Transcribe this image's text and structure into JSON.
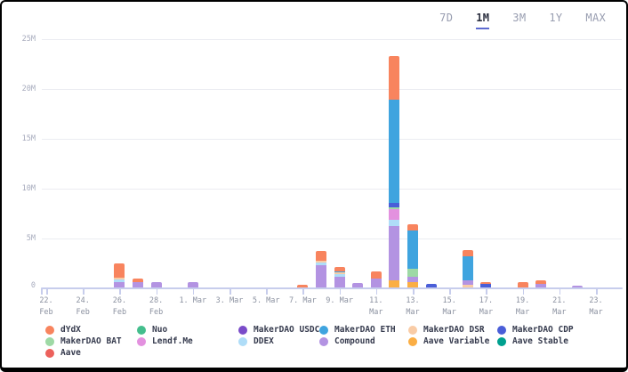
{
  "range_selector": {
    "options": [
      "7D",
      "1M",
      "3M",
      "1Y",
      "MAX"
    ],
    "active": "1M",
    "accent_color": "#5d6ad0"
  },
  "chart_data": {
    "type": "bar",
    "stacked": true,
    "title": "",
    "xlabel": "",
    "ylabel": "",
    "unit": "M (millions USD)",
    "ylim": [
      0,
      25
    ],
    "grid": true,
    "legend_position": "bottom",
    "yticks": [
      {
        "v": 0,
        "label": "0"
      },
      {
        "v": 5,
        "label": "5M"
      },
      {
        "v": 10,
        "label": "10M"
      },
      {
        "v": 15,
        "label": "15M"
      },
      {
        "v": 20,
        "label": "20M"
      },
      {
        "v": 25,
        "label": "25M"
      }
    ],
    "xticks": [
      [
        "22.",
        "Feb"
      ],
      [
        "24.",
        "Feb"
      ],
      [
        "26.",
        "Feb"
      ],
      [
        "28.",
        "Feb"
      ],
      [
        "1. Mar"
      ],
      [
        "3. Mar"
      ],
      [
        "5. Mar"
      ],
      [
        "7. Mar"
      ],
      [
        "9. Mar"
      ],
      [
        "11.",
        "Mar"
      ],
      [
        "13.",
        "Mar"
      ],
      [
        "15.",
        "Mar"
      ],
      [
        "17.",
        "Mar"
      ],
      [
        "19.",
        "Mar"
      ],
      [
        "21.",
        "Mar"
      ],
      [
        "23.",
        "Mar"
      ]
    ],
    "x_day_span": 31,
    "x_start_label": "22. Feb",
    "series_colors": {
      "dYdX": "#F8845E",
      "MakerDAO BAT": "#9ED9A5",
      "Aave": "#EC615C",
      "Nuo": "#44BE8D",
      "Lendf.Me": "#E391DF",
      "MakerDAO USDC": "#7A4CC9",
      "DDEX": "#AFDDF8",
      "MakerDAO ETH": "#3FA4DF",
      "Compound": "#B393E2",
      "MakerDAO DSR": "#F9CCA6",
      "Aave Variable": "#FBAE44",
      "MakerDAO CDP": "#4A5ED8",
      "Aave Stable": "#00A08F"
    },
    "legend_columns": [
      [
        "dYdX",
        "MakerDAO BAT",
        "Aave"
      ],
      [
        "Nuo",
        "Lendf.Me"
      ],
      [
        "MakerDAO USDC",
        "DDEX"
      ],
      [
        "MakerDAO ETH",
        "Compound"
      ],
      [
        "MakerDAO DSR",
        "Aave Variable"
      ],
      [
        "MakerDAO CDP",
        "Aave Stable"
      ]
    ],
    "bars": [
      {
        "date": "26. Feb",
        "day": 4,
        "total": 2.45,
        "segments": [
          [
            "Compound",
            0.55
          ],
          [
            "DDEX",
            0.25
          ],
          [
            "MakerDAO DSR",
            0.2
          ],
          [
            "dYdX",
            1.45
          ]
        ]
      },
      {
        "date": "27. Feb",
        "day": 5,
        "total": 0.9,
        "segments": [
          [
            "Compound",
            0.55
          ],
          [
            "dYdX",
            0.35
          ]
        ]
      },
      {
        "date": "28. Feb",
        "day": 6,
        "total": 0.55,
        "segments": [
          [
            "Compound",
            0.55
          ]
        ]
      },
      {
        "date": "1. Mar",
        "day": 8,
        "total": 0.55,
        "segments": [
          [
            "Compound",
            0.55
          ]
        ]
      },
      {
        "date": "7. Mar",
        "day": 14,
        "total": 0.25,
        "segments": [
          [
            "dYdX",
            0.25
          ]
        ]
      },
      {
        "date": "8. Mar",
        "day": 15,
        "total": 3.7,
        "segments": [
          [
            "Compound",
            2.2
          ],
          [
            "DDEX",
            0.3
          ],
          [
            "MakerDAO DSR",
            0.2
          ],
          [
            "dYdX",
            1.0
          ]
        ]
      },
      {
        "date": "9. Mar",
        "day": 16,
        "total": 2.05,
        "segments": [
          [
            "Compound",
            1.1
          ],
          [
            "DDEX",
            0.25
          ],
          [
            "MakerDAO DSR",
            0.15
          ],
          [
            "MakerDAO ETH",
            0.15
          ],
          [
            "dYdX",
            0.4
          ]
        ]
      },
      {
        "date": "10. Mar",
        "day": 17,
        "total": 0.45,
        "segments": [
          [
            "Compound",
            0.45
          ]
        ]
      },
      {
        "date": "11. Mar",
        "day": 18,
        "total": 1.65,
        "segments": [
          [
            "Compound",
            0.9
          ],
          [
            "dYdX",
            0.75
          ]
        ]
      },
      {
        "date": "12. Mar",
        "day": 19,
        "total": 23.25,
        "segments": [
          [
            "Aave Variable",
            0.7
          ],
          [
            "Compound",
            5.5
          ],
          [
            "DDEX",
            0.6
          ],
          [
            "Lendf.Me",
            1.05
          ],
          [
            "MakerDAO BAT",
            0.2
          ],
          [
            "MakerDAO CDP",
            0.4
          ],
          [
            "MakerDAO ETH",
            10.4
          ],
          [
            "dYdX",
            4.4
          ]
        ]
      },
      {
        "date": "13. Mar",
        "day": 20,
        "total": 6.35,
        "segments": [
          [
            "Aave Variable",
            0.55
          ],
          [
            "Compound",
            0.5
          ],
          [
            "MakerDAO BAT",
            0.8
          ],
          [
            "MakerDAO ETH",
            3.85
          ],
          [
            "dYdX",
            0.65
          ]
        ]
      },
      {
        "date": "14. Mar",
        "day": 21,
        "total": 0.4,
        "segments": [
          [
            "MakerDAO CDP",
            0.4
          ]
        ]
      },
      {
        "date": "16. Mar",
        "day": 23,
        "total": 3.75,
        "segments": [
          [
            "MakerDAO DSR",
            0.3
          ],
          [
            "Compound",
            0.45
          ],
          [
            "MakerDAO ETH",
            2.4
          ],
          [
            "dYdX",
            0.6
          ]
        ]
      },
      {
        "date": "17. Mar",
        "day": 24,
        "total": 0.55,
        "segments": [
          [
            "MakerDAO CDP",
            0.35
          ],
          [
            "dYdX",
            0.2
          ]
        ]
      },
      {
        "date": "19. Mar",
        "day": 26,
        "total": 0.5,
        "segments": [
          [
            "dYdX",
            0.5
          ]
        ]
      },
      {
        "date": "20. Mar",
        "day": 27,
        "total": 0.75,
        "segments": [
          [
            "Compound",
            0.4
          ],
          [
            "dYdX",
            0.35
          ]
        ]
      },
      {
        "date": "22. Mar",
        "day": 29,
        "total": 0.2,
        "segments": [
          [
            "Compound",
            0.2
          ]
        ]
      }
    ]
  }
}
